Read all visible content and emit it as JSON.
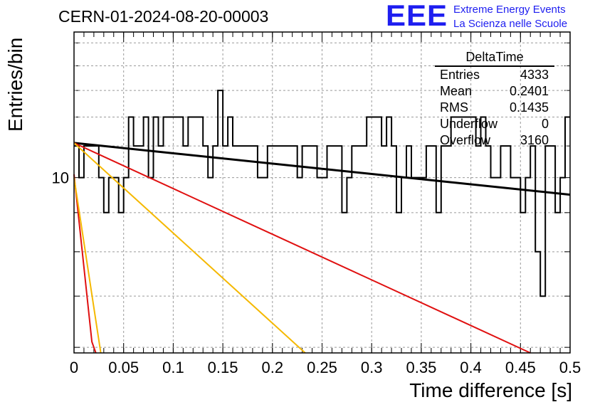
{
  "header": {
    "run_title": "CERN-01-2024-08-20-00003",
    "logo_text": "EEE",
    "logo_line1": "Extreme Energy Events",
    "logo_line2": "La Scienza nelle Scuole",
    "logo_color": "#1e1ef0"
  },
  "stats_box": {
    "title": "DeltaTime",
    "rows": [
      {
        "label": "Entries",
        "value": "4333"
      },
      {
        "label": "Mean",
        "value": "0.2401"
      },
      {
        "label": "RMS",
        "value": "0.1435"
      },
      {
        "label": "Underflow",
        "value": "0"
      },
      {
        "label": "Overflow",
        "value": "3160"
      }
    ]
  },
  "chart_data": {
    "type": "line",
    "xlabel": "Time difference [s]",
    "ylabel": "Entries/bin",
    "xlim": [
      0,
      0.5
    ],
    "ylim": [
      5.9,
      15.5
    ],
    "y_scale": "log",
    "grid": true,
    "x_ticks": [
      "0",
      "0.05",
      "0.1",
      "0.15",
      "0.2",
      "0.25",
      "0.3",
      "0.35",
      "0.4",
      "0.45",
      "0.5"
    ],
    "y_ticks": [
      "10"
    ],
    "histogram": {
      "bin_width": 0.005,
      "counts": [
        11,
        10,
        11,
        11,
        11,
        10,
        9,
        10,
        10,
        9,
        10,
        12,
        11,
        11,
        12,
        10,
        12,
        11,
        12,
        12,
        12,
        12,
        11,
        12,
        12,
        12,
        11,
        10,
        11,
        13,
        11,
        12,
        11,
        11,
        11,
        11,
        11,
        10,
        10,
        11,
        11,
        11,
        11,
        11,
        11,
        10,
        11,
        11,
        11,
        10,
        10,
        11,
        11,
        11,
        9,
        10,
        11,
        11,
        11,
        12,
        12,
        12,
        11,
        12,
        11,
        9,
        10,
        11,
        10,
        10,
        10,
        11,
        11,
        9,
        11,
        11,
        12,
        12,
        12,
        12,
        12,
        11,
        12,
        11,
        10,
        10,
        11,
        11,
        10,
        10,
        9,
        10,
        11,
        8,
        7,
        11,
        11,
        9,
        10,
        12
      ]
    },
    "fits": [
      {
        "color": "#000000",
        "x": [
          0,
          0.5
        ],
        "y": [
          11.1,
          9.5
        ]
      },
      {
        "color": "#e01010",
        "x": [
          0,
          0.46
        ],
        "y": [
          11.1,
          5.9
        ]
      },
      {
        "color": "#f5b800",
        "x": [
          0,
          0.233
        ],
        "y": [
          11.1,
          5.9
        ]
      },
      {
        "color": "#e01010",
        "x": [
          0,
          0.018,
          0.022
        ],
        "y": [
          10.1,
          6.1,
          5.9
        ]
      },
      {
        "color": "#f5b800",
        "x": [
          0,
          0.027
        ],
        "y": [
          10.0,
          5.9
        ]
      }
    ]
  }
}
